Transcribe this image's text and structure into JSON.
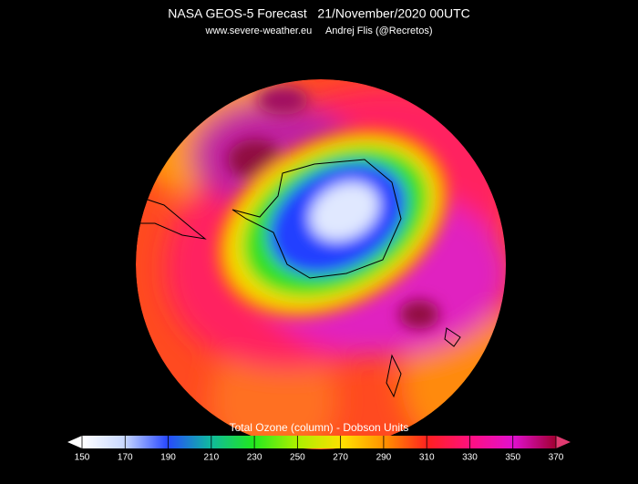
{
  "title": "NASA GEOS-5 Forecast   21/November/2020 00UTC",
  "subtitle": "www.severe-weather.eu     Andrej Flis (@Recretos)",
  "colorbar": {
    "label": "Total Ozone (column) - Dobson Units",
    "lim": [
      150,
      370
    ],
    "ticks": [
      150,
      170,
      190,
      210,
      230,
      250,
      270,
      290,
      310,
      330,
      350,
      370
    ]
  }
}
